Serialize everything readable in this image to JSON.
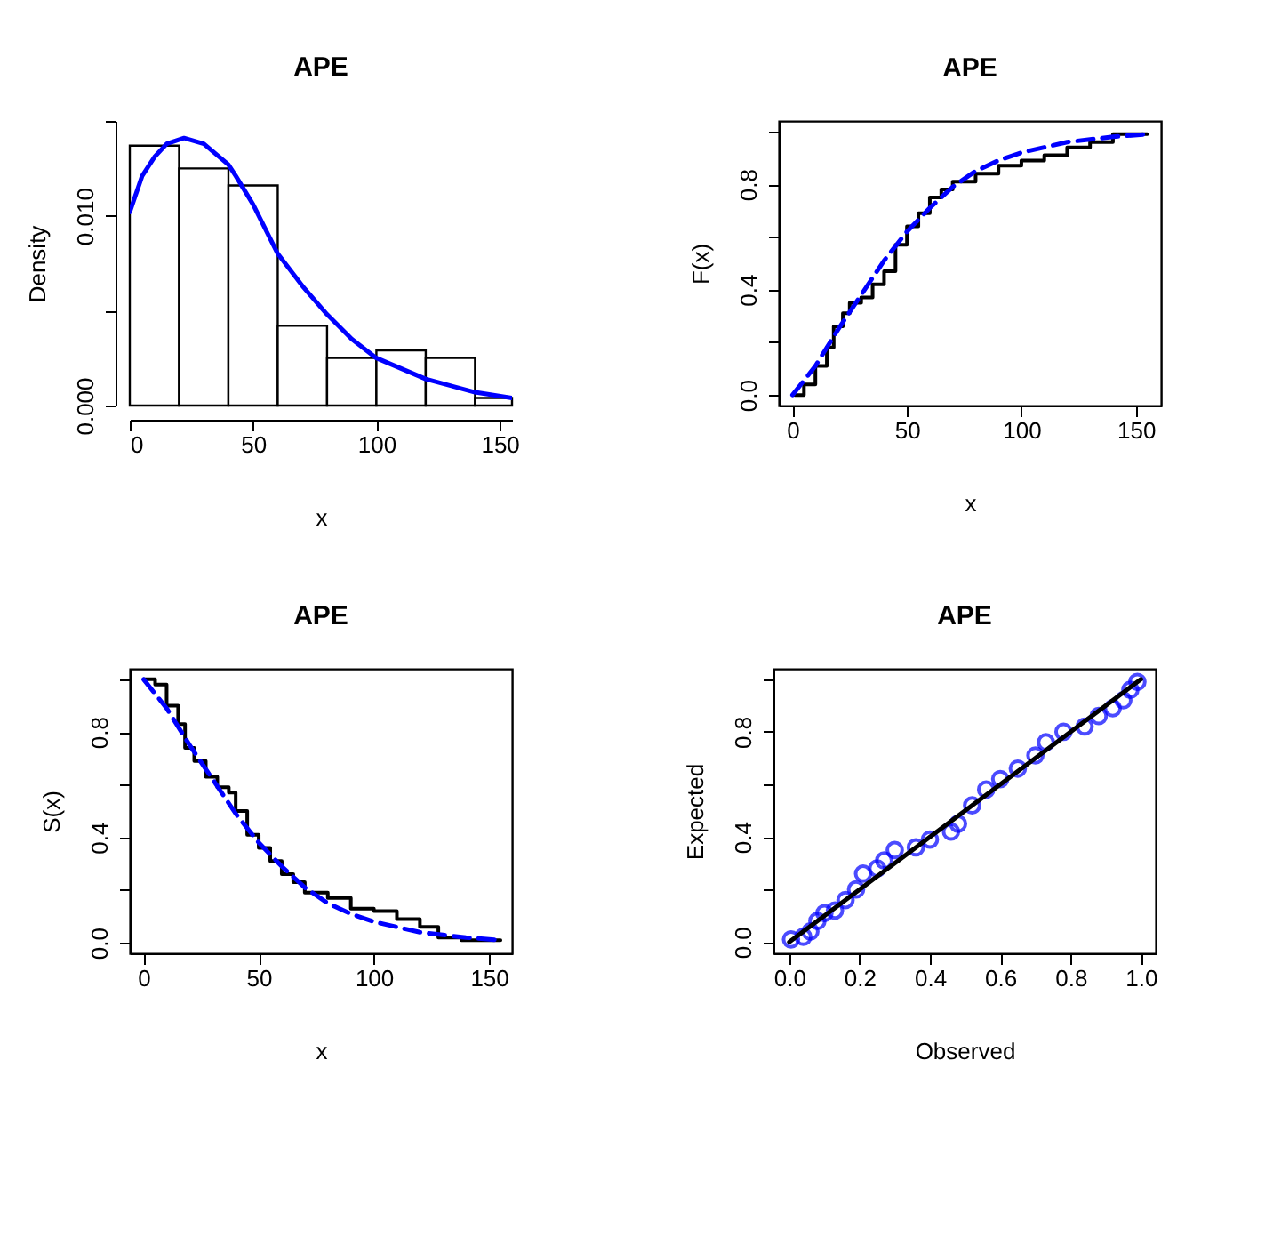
{
  "chart_data": [
    {
      "type": "histogram",
      "title": "APE",
      "xlabel": "x",
      "ylabel": "Density",
      "bins": [
        0,
        20,
        40,
        60,
        80,
        100,
        120,
        140,
        155
      ],
      "values": [
        0.0137,
        0.0125,
        0.0116,
        0.0042,
        0.0025,
        0.0029,
        0.0025,
        0.0004
      ],
      "color": "#ffffff",
      "xlim": [
        0,
        155
      ],
      "ylim": [
        0,
        0.015
      ],
      "xticks": [
        0,
        50,
        100,
        150
      ],
      "yticks": [
        {
          "value": 0,
          "label": "0.000"
        },
        {
          "value": 0.005,
          "label": null
        },
        {
          "value": 0.01,
          "label": "0.010"
        },
        {
          "value": 0.015,
          "label": null
        }
      ],
      "series": [
        {
          "type": "line",
          "color": "#0000ff",
          "x": [
            0,
            5,
            10,
            15,
            22,
            30,
            40,
            43,
            50,
            60,
            70,
            80,
            90,
            100,
            120,
            140,
            155
          ],
          "values": [
            0.0102,
            0.0121,
            0.0131,
            0.0138,
            0.0141,
            0.0138,
            0.0127,
            0.0121,
            0.0106,
            0.008,
            0.0063,
            0.0048,
            0.0035,
            0.0025,
            0.0014,
            0.0007,
            0.0004
          ]
        }
      ]
    },
    {
      "type": "line",
      "title": "APE",
      "xlabel": "x",
      "ylabel": "F(x)",
      "xlim": [
        -6,
        161
      ],
      "ylim": [
        -0.04,
        1.04
      ],
      "xticks": [
        0,
        50,
        100,
        150
      ],
      "yticks": [
        {
          "value": 0,
          "label": "0.0"
        },
        {
          "value": 0.2,
          "label": null
        },
        {
          "value": 0.4,
          "label": "0.4"
        },
        {
          "value": 0.6,
          "label": null
        },
        {
          "value": 0.8,
          "label": "0.8"
        },
        {
          "value": 1,
          "label": null
        }
      ],
      "series": [
        {
          "type": "step",
          "color": "#000000",
          "x": [
            1,
            5,
            10,
            15,
            18,
            22,
            25,
            30,
            35,
            40,
            45,
            50,
            55,
            60,
            65,
            70,
            80,
            90,
            100,
            110,
            120,
            130,
            140,
            155
          ],
          "values": [
            0,
            0.04,
            0.11,
            0.18,
            0.26,
            0.31,
            0.35,
            0.37,
            0.42,
            0.47,
            0.57,
            0.64,
            0.69,
            0.75,
            0.78,
            0.81,
            0.84,
            0.87,
            0.89,
            0.91,
            0.94,
            0.96,
            0.99,
            0.99
          ]
        },
        {
          "type": "line",
          "color": "#0000ff",
          "line_style": "dashed",
          "x": [
            0,
            10,
            20,
            30,
            40,
            50,
            60,
            70,
            80,
            90,
            100,
            110,
            120,
            130,
            140,
            155
          ],
          "values": [
            0,
            0.11,
            0.25,
            0.38,
            0.51,
            0.62,
            0.71,
            0.79,
            0.85,
            0.89,
            0.92,
            0.94,
            0.96,
            0.97,
            0.98,
            0.99
          ]
        }
      ]
    },
    {
      "type": "line",
      "title": "APE",
      "xlabel": "x",
      "ylabel": "S(x)",
      "xlim": [
        -6,
        160
      ],
      "ylim": [
        -0.04,
        1.04
      ],
      "xticks": [
        0,
        50,
        100,
        150
      ],
      "yticks": [
        {
          "value": 0,
          "label": "0.0"
        },
        {
          "value": 0.2,
          "label": null
        },
        {
          "value": 0.4,
          "label": "0.4"
        },
        {
          "value": 0.6,
          "label": null
        },
        {
          "value": 0.8,
          "label": "0.8"
        },
        {
          "value": 1,
          "label": null
        }
      ],
      "series": [
        {
          "type": "step",
          "color": "#000000",
          "x": [
            0,
            5,
            10,
            15,
            18,
            22,
            27,
            32,
            37,
            40,
            45,
            50,
            55,
            60,
            65,
            70,
            80,
            90,
            100,
            110,
            120,
            128,
            138,
            155
          ],
          "values": [
            1,
            0.98,
            0.9,
            0.83,
            0.74,
            0.69,
            0.63,
            0.59,
            0.57,
            0.5,
            0.41,
            0.36,
            0.31,
            0.26,
            0.23,
            0.19,
            0.17,
            0.13,
            0.12,
            0.09,
            0.06,
            0.02,
            0.01,
            0.01
          ]
        },
        {
          "type": "line",
          "color": "#0000ff",
          "line_style": "dashed",
          "x": [
            0,
            10,
            20,
            30,
            40,
            50,
            60,
            70,
            80,
            90,
            100,
            110,
            120,
            130,
            140,
            155
          ],
          "values": [
            1,
            0.89,
            0.75,
            0.62,
            0.49,
            0.38,
            0.29,
            0.21,
            0.15,
            0.11,
            0.08,
            0.06,
            0.04,
            0.03,
            0.02,
            0.01
          ]
        }
      ]
    },
    {
      "type": "scatter",
      "title": "APE",
      "xlabel": "Observed",
      "ylabel": "Expected",
      "xlim": [
        -0.045,
        1.042
      ],
      "ylim": [
        -0.043,
        1.04
      ],
      "xticks": [
        {
          "value": 0,
          "label": "0.0"
        },
        {
          "value": 0.2,
          "label": "0.2"
        },
        {
          "value": 0.4,
          "label": "0.4"
        },
        {
          "value": 0.6,
          "label": "0.6"
        },
        {
          "value": 0.8,
          "label": "0.8"
        },
        {
          "value": 1,
          "label": "1.0"
        }
      ],
      "yticks": [
        {
          "value": 0,
          "label": "0.0"
        },
        {
          "value": 0.2,
          "label": null
        },
        {
          "value": 0.4,
          "label": "0.4"
        },
        {
          "value": 0.6,
          "label": null
        },
        {
          "value": 0.8,
          "label": "0.8"
        },
        {
          "value": 1,
          "label": null
        }
      ],
      "series": [
        {
          "type": "scatter",
          "color": "#0000ff",
          "marker": "circle",
          "x": [
            0.005,
            0.04,
            0.06,
            0.08,
            0.1,
            0.13,
            0.16,
            0.19,
            0.21,
            0.25,
            0.27,
            0.3,
            0.36,
            0.4,
            0.46,
            0.48,
            0.52,
            0.56,
            0.6,
            0.65,
            0.7,
            0.73,
            0.78,
            0.84,
            0.88,
            0.92,
            0.95,
            0.97,
            0.99
          ],
          "values": [
            0.01,
            0.02,
            0.04,
            0.08,
            0.11,
            0.12,
            0.16,
            0.2,
            0.26,
            0.28,
            0.31,
            0.35,
            0.36,
            0.39,
            0.42,
            0.45,
            0.52,
            0.58,
            0.62,
            0.66,
            0.71,
            0.76,
            0.8,
            0.82,
            0.86,
            0.89,
            0.92,
            0.96,
            0.99
          ]
        },
        {
          "type": "line",
          "color": "#000000",
          "x": [
            0,
            1
          ],
          "values": [
            0,
            1
          ]
        }
      ]
    }
  ]
}
